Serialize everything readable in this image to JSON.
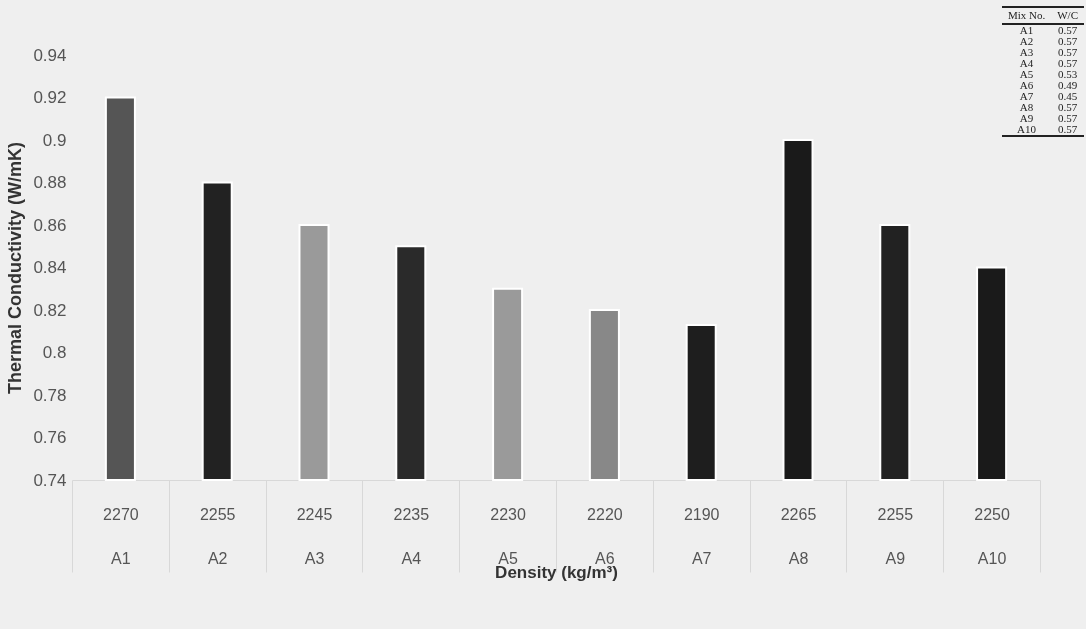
{
  "chart_data": {
    "type": "bar",
    "xlabel": "Density (kg/m³)",
    "ylabel": "Thermal Conductivity (W/mK)",
    "categories": [
      "2270\nA1",
      "2255\nA2",
      "2245\nA3",
      "2235\nA4",
      "2230\nA5",
      "2220\nA6",
      "2190\nA7",
      "2265\nA8",
      "2255\nA9",
      "2250\nA10"
    ],
    "values": [
      0.92,
      0.88,
      0.86,
      0.85,
      0.83,
      0.82,
      0.813,
      0.9,
      0.86,
      0.84
    ],
    "colors": [
      "#555555",
      "#222222",
      "#9a9a9a",
      "#2a2a2a",
      "#9a9a9a",
      "#888888",
      "#1e1e1e",
      "#1a1a1a",
      "#222222",
      "#1a1a1a"
    ],
    "ylim": [
      0.74,
      0.94
    ],
    "yticks": [
      0.74,
      0.76,
      0.78,
      0.8,
      0.82,
      0.84,
      0.86,
      0.88,
      0.9,
      0.92,
      0.94
    ],
    "annotations": [
      "Mix No.",
      "W/C",
      "A1",
      "0.57",
      "A2",
      "0.57",
      "A3",
      "0.57",
      "A4",
      "0.57",
      "A5",
      "0.53",
      "A6",
      "0.49",
      "A7",
      "0.45",
      "A8",
      "0.57",
      "A9",
      "0.57",
      "A10",
      "0.57"
    ]
  }
}
